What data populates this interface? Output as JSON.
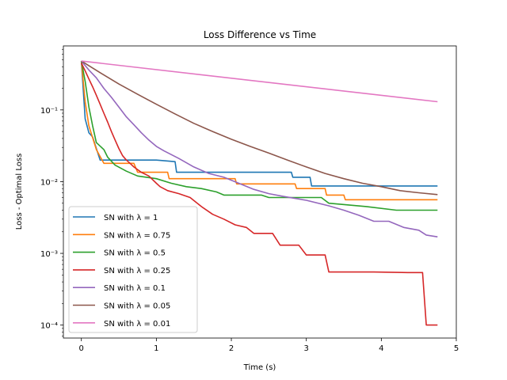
{
  "chart_data": {
    "type": "line",
    "title": "Loss Difference vs Time",
    "xlabel": "Time (s)",
    "ylabel": "Loss - Optimal Loss",
    "xlim": [
      -0.24,
      5.0
    ],
    "ylim": [
      6.6e-05,
      0.78
    ],
    "yscale": "log",
    "xticks": [
      0,
      1,
      2,
      3,
      4,
      5
    ],
    "xtick_labels": [
      "0",
      "1",
      "2",
      "3",
      "4",
      "5"
    ],
    "yticks": [
      0.0001,
      0.001,
      0.01,
      0.1
    ],
    "ytick_labels": [
      "10⁻⁴",
      "10⁻³",
      "10⁻²",
      "10⁻¹"
    ],
    "grid": false,
    "legend_position": "lower-left",
    "series": [
      {
        "name": "SN with λ = 1",
        "color": "#1f77b4",
        "x": [
          0,
          0.05,
          0.1,
          0.15,
          0.25,
          0.3,
          1.0,
          1.25,
          1.27,
          2.8,
          2.82,
          3.05,
          3.07,
          4.75
        ],
        "y": [
          0.48,
          0.075,
          0.048,
          0.042,
          0.02,
          0.02,
          0.02,
          0.019,
          0.0135,
          0.0135,
          0.0115,
          0.0115,
          0.0087,
          0.0087
        ]
      },
      {
        "name": "SN with λ = 0.75",
        "color": "#ff7f0e",
        "x": [
          0,
          0.05,
          0.1,
          0.2,
          0.3,
          0.45,
          0.7,
          0.75,
          0.9,
          1.15,
          1.17,
          2.05,
          2.07,
          2.85,
          2.87,
          3.25,
          3.27,
          3.5,
          3.52,
          4.75
        ],
        "y": [
          0.48,
          0.13,
          0.06,
          0.028,
          0.018,
          0.018,
          0.018,
          0.0135,
          0.0135,
          0.0135,
          0.011,
          0.011,
          0.0093,
          0.0093,
          0.008,
          0.008,
          0.0065,
          0.0065,
          0.0056,
          0.0056
        ]
      },
      {
        "name": "SN with λ = 0.5",
        "color": "#2ca02c",
        "x": [
          0,
          0.05,
          0.1,
          0.15,
          0.2,
          0.3,
          0.35,
          0.45,
          0.6,
          0.75,
          1.0,
          1.2,
          1.4,
          1.6,
          1.8,
          1.9,
          2.4,
          2.5,
          3.2,
          3.3,
          3.8,
          4.2,
          4.75
        ],
        "y": [
          0.48,
          0.25,
          0.11,
          0.06,
          0.035,
          0.028,
          0.022,
          0.017,
          0.014,
          0.012,
          0.011,
          0.0095,
          0.0085,
          0.008,
          0.0072,
          0.0065,
          0.0065,
          0.006,
          0.006,
          0.005,
          0.0045,
          0.004,
          0.004
        ]
      },
      {
        "name": "SN with λ = 0.25",
        "color": "#d62728",
        "x": [
          0,
          0.05,
          0.1,
          0.15,
          0.2,
          0.25,
          0.3,
          0.35,
          0.4,
          0.45,
          0.5,
          0.55,
          0.6,
          0.65,
          0.7,
          0.8,
          0.9,
          1.0,
          1.05,
          1.15,
          1.3,
          1.45,
          1.6,
          1.75,
          1.9,
          2.05,
          2.2,
          2.3,
          2.55,
          2.65,
          2.9,
          3.0,
          3.25,
          3.3,
          3.9,
          4.35,
          4.5,
          4.55,
          4.6,
          4.75
        ],
        "y": [
          0.45,
          0.35,
          0.27,
          0.21,
          0.16,
          0.12,
          0.09,
          0.068,
          0.05,
          0.038,
          0.029,
          0.023,
          0.02,
          0.018,
          0.016,
          0.0135,
          0.012,
          0.0095,
          0.0085,
          0.0075,
          0.0068,
          0.006,
          0.0045,
          0.0035,
          0.003,
          0.0025,
          0.0023,
          0.0019,
          0.0019,
          0.0013,
          0.0013,
          0.00095,
          0.00095,
          0.00055,
          0.00055,
          0.00054,
          0.00054,
          0.00054,
          0.0001,
          0.0001
        ]
      },
      {
        "name": "SN with λ = 0.1",
        "color": "#9467bd",
        "x": [
          0,
          0.1,
          0.2,
          0.3,
          0.4,
          0.5,
          0.6,
          0.7,
          0.8,
          0.9,
          1.0,
          1.1,
          1.3,
          1.5,
          1.7,
          1.9,
          2.1,
          2.3,
          2.5,
          2.7,
          3.0,
          3.3,
          3.5,
          3.7,
          3.9,
          4.1,
          4.3,
          4.5,
          4.6,
          4.75
        ],
        "y": [
          0.48,
          0.36,
          0.28,
          0.2,
          0.15,
          0.11,
          0.08,
          0.062,
          0.048,
          0.038,
          0.031,
          0.027,
          0.021,
          0.016,
          0.013,
          0.0115,
          0.0095,
          0.0078,
          0.0068,
          0.0062,
          0.0055,
          0.0046,
          0.004,
          0.0034,
          0.0028,
          0.0028,
          0.0023,
          0.0021,
          0.0018,
          0.0017
        ]
      },
      {
        "name": "SN with λ = 0.05",
        "color": "#8c564b",
        "x": [
          0,
          0.25,
          0.5,
          0.75,
          1.0,
          1.25,
          1.5,
          1.75,
          2.0,
          2.25,
          2.5,
          2.75,
          3.0,
          3.25,
          3.5,
          3.75,
          4.0,
          4.25,
          4.5,
          4.75
        ],
        "y": [
          0.48,
          0.33,
          0.23,
          0.165,
          0.12,
          0.088,
          0.065,
          0.05,
          0.039,
          0.031,
          0.025,
          0.02,
          0.016,
          0.013,
          0.011,
          0.0095,
          0.0085,
          0.0075,
          0.007,
          0.0066
        ]
      },
      {
        "name": "SN with λ = 0.01",
        "color": "#e377c2",
        "x": [
          0,
          4.75
        ],
        "y": [
          0.48,
          0.13
        ]
      }
    ]
  }
}
